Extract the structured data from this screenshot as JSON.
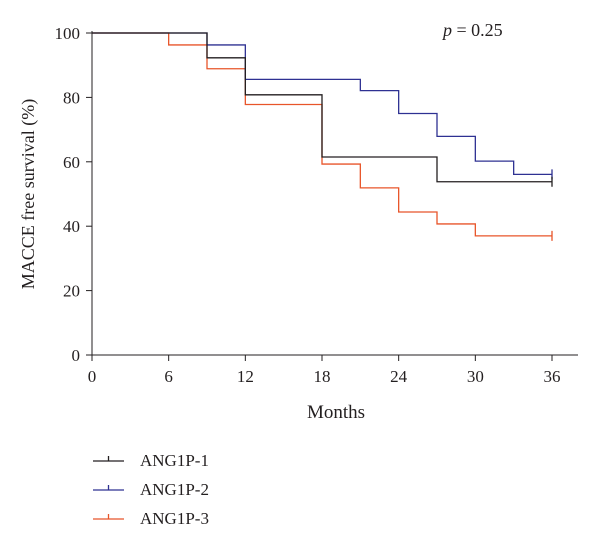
{
  "chart_data": {
    "type": "line",
    "subtype": "kaplan-meier step survival curve",
    "xlabel": "Months",
    "ylabel": "MACCE free survival (%)",
    "xlim": [
      0,
      36
    ],
    "ylim": [
      0,
      100
    ],
    "xticks": [
      0,
      6,
      12,
      18,
      24,
      30,
      36
    ],
    "yticks": [
      0,
      20,
      40,
      60,
      80,
      100
    ],
    "annotation": {
      "italic": "p",
      "text": " = 0.25"
    },
    "grid": false,
    "legend_position": "bottom-left",
    "series": [
      {
        "name": "ANG1P-1",
        "color": "#231f20",
        "steps": [
          [
            0,
            100
          ],
          [
            9,
            92.3
          ],
          [
            12,
            80.8
          ],
          [
            18,
            61.5
          ],
          [
            27,
            53.8
          ],
          [
            36,
            53.8
          ]
        ],
        "censor_marks": [
          [
            36,
            53.8
          ]
        ]
      },
      {
        "name": "ANG1P-2",
        "color": "#2e3192",
        "steps": [
          [
            0,
            100
          ],
          [
            9,
            96.3
          ],
          [
            12,
            85.6
          ],
          [
            21,
            82.1
          ],
          [
            24,
            75
          ],
          [
            27,
            67.9
          ],
          [
            30,
            60.2
          ],
          [
            33,
            56.1
          ],
          [
            36,
            56.1
          ]
        ],
        "censor_marks": [
          [
            36,
            56.1
          ]
        ]
      },
      {
        "name": "ANG1P-3",
        "color": "#e8552a",
        "steps": [
          [
            0,
            100
          ],
          [
            6,
            96.3
          ],
          [
            9,
            88.9
          ],
          [
            12,
            77.8
          ],
          [
            18,
            59.3
          ],
          [
            21,
            51.9
          ],
          [
            24,
            44.4
          ],
          [
            27,
            40.7
          ],
          [
            30,
            37
          ],
          [
            36,
            37
          ]
        ],
        "censor_marks": [
          [
            36,
            37
          ]
        ]
      }
    ]
  }
}
